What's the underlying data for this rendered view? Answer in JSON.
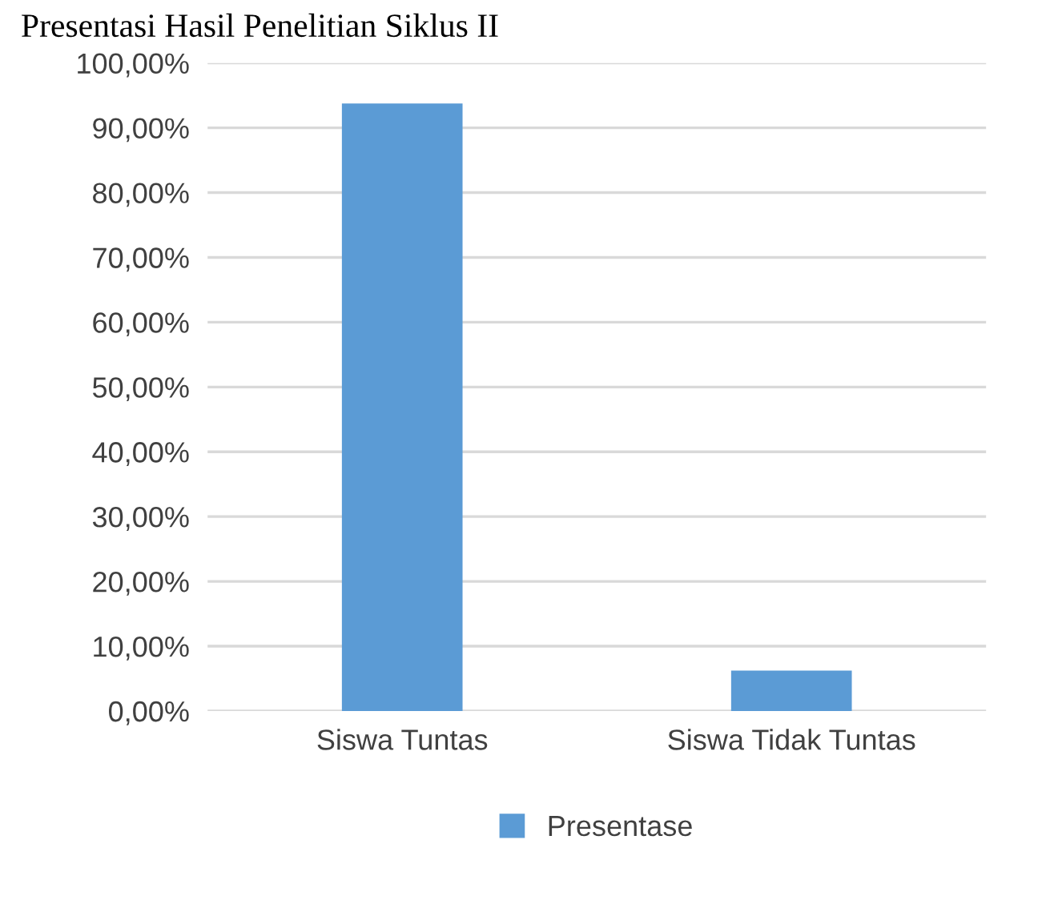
{
  "chart_data": {
    "type": "bar",
    "title": "Presentasi Hasil Penelitian Siklus II",
    "categories": [
      "Siswa Tuntas",
      "Siswa Tidak Tuntas"
    ],
    "series": [
      {
        "name": "Presentase",
        "color": "#5b9bd5",
        "values": [
          93.75,
          6.25
        ]
      }
    ],
    "ylim": [
      0,
      100
    ],
    "yticks": [
      {
        "value": 0,
        "label": "0,00%"
      },
      {
        "value": 10,
        "label": "10,00%"
      },
      {
        "value": 20,
        "label": "20,00%"
      },
      {
        "value": 30,
        "label": "30,00%"
      },
      {
        "value": 40,
        "label": "40,00%"
      },
      {
        "value": 50,
        "label": "50,00%"
      },
      {
        "value": 60,
        "label": "60,00%"
      },
      {
        "value": 70,
        "label": "70,00%"
      },
      {
        "value": 80,
        "label": "80,00%"
      },
      {
        "value": 90,
        "label": "90,00%"
      },
      {
        "value": 100,
        "label": "100,00%"
      }
    ],
    "grid": "y",
    "legend": "bottom"
  }
}
